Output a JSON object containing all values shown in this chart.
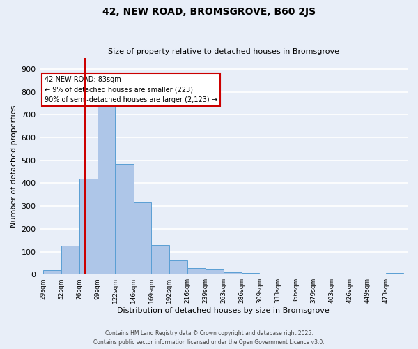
{
  "title": "42, NEW ROAD, BROMSGROVE, B60 2JS",
  "subtitle": "Size of property relative to detached houses in Bromsgrove",
  "xlabel": "Distribution of detached houses by size in Bromsgrove",
  "ylabel": "Number of detached properties",
  "footer_line1": "Contains HM Land Registry data © Crown copyright and database right 2025.",
  "footer_line2": "Contains public sector information licensed under the Open Government Licence v3.0.",
  "bins": [
    29,
    52,
    76,
    99,
    122,
    146,
    169,
    192,
    216,
    239,
    263,
    286,
    309,
    333,
    356,
    379,
    403,
    426,
    449,
    473,
    496
  ],
  "bar_values": [
    20,
    125,
    420,
    737,
    485,
    315,
    130,
    62,
    28,
    22,
    10,
    8,
    5,
    0,
    0,
    0,
    0,
    0,
    0,
    8
  ],
  "bar_color": "#aec6e8",
  "bar_edge_color": "#5a9fd4",
  "vline_x": 83,
  "vline_color": "#cc0000",
  "annotation_line1": "42 NEW ROAD: 83sqm",
  "annotation_line2": "← 9% of detached houses are smaller (223)",
  "annotation_line3": "90% of semi-detached houses are larger (2,123) →",
  "annotation_box_color": "#ffffff",
  "annotation_box_edge": "#cc0000",
  "ylim": [
    0,
    950
  ],
  "background_color": "#e8eef8",
  "grid_color": "#ffffff",
  "title_fontsize": 10,
  "subtitle_fontsize": 8,
  "ylabel_fontsize": 8,
  "xlabel_fontsize": 8
}
